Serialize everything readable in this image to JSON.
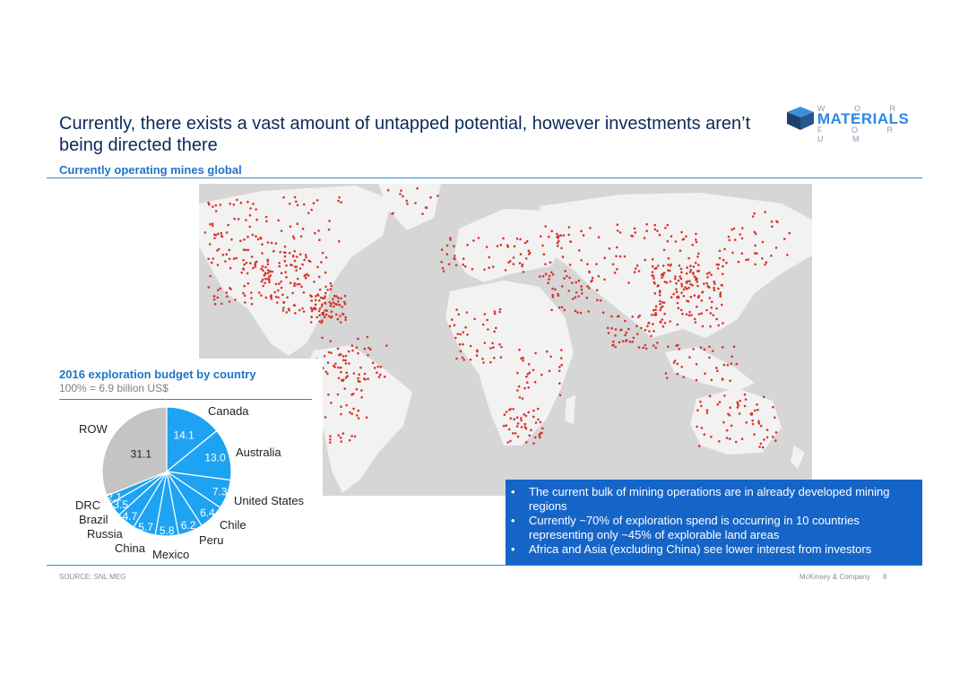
{
  "title": "Currently, there exists a vast amount of untapped potential, however investments aren’t being directed there",
  "subtitle": "Currently operating mines global",
  "logo": {
    "top": "W O R L D",
    "main": "MATERIALS",
    "bottom": "F O R U M"
  },
  "pie_title": "2016 exploration budget by country",
  "pie_subtitle": "100% = 6.9 billion US$",
  "callout": [
    "The current bulk of mining operations are in already developed mining regions",
    "Currently ~70% of exploration spend is occurring in 10 countries representing only ~45% of explorable land areas",
    "Africa and Asia (excluding China) see lower interest from investors"
  ],
  "source": "SOURCE: SNL MEG",
  "footer": "McKinsey & Company",
  "page_number": "8",
  "colors": {
    "accent": "#1f8fe0",
    "pie_blue": "#1ea3f2",
    "pie_grey": "#c4c4c4",
    "callout_bg": "#1565c9",
    "mine_dot": "#d9342b"
  },
  "chart_data": {
    "type": "pie",
    "title": "2016 exploration budget by country",
    "subtitle": "100% = 6.9 billion US$",
    "slices": [
      {
        "label": "Canada",
        "value": 14.1
      },
      {
        "label": "Australia",
        "value": 13.0
      },
      {
        "label": "United States",
        "value": 7.3
      },
      {
        "label": "Chile",
        "value": 6.4
      },
      {
        "label": "Peru",
        "value": 6.2
      },
      {
        "label": "Mexico",
        "value": 5.8
      },
      {
        "label": "China",
        "value": 5.7
      },
      {
        "label": "Russia",
        "value": 4.7
      },
      {
        "label": "Brazil",
        "value": 3.5
      },
      {
        "label": "DRC",
        "value": 2.1
      },
      {
        "label": "ROW",
        "value": 31.1
      }
    ]
  }
}
